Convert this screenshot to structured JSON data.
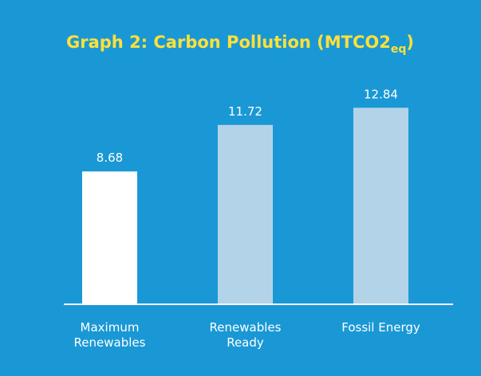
{
  "chart_data": {
    "type": "bar",
    "title": [
      "Graph 2: Carbon Pollution (MTCO2",
      "eq",
      ")"
    ],
    "categories": [
      [
        "Maximum",
        "Renewables"
      ],
      [
        "Renewables",
        "Ready"
      ],
      [
        "Fossil Energy"
      ]
    ],
    "values": [
      8.68,
      11.72,
      12.84
    ],
    "colors": [
      "#ffffff",
      "#b3d3e8",
      "#b3d3e8"
    ],
    "background": "#1a98d5",
    "ylim": [
      0,
      14
    ]
  }
}
